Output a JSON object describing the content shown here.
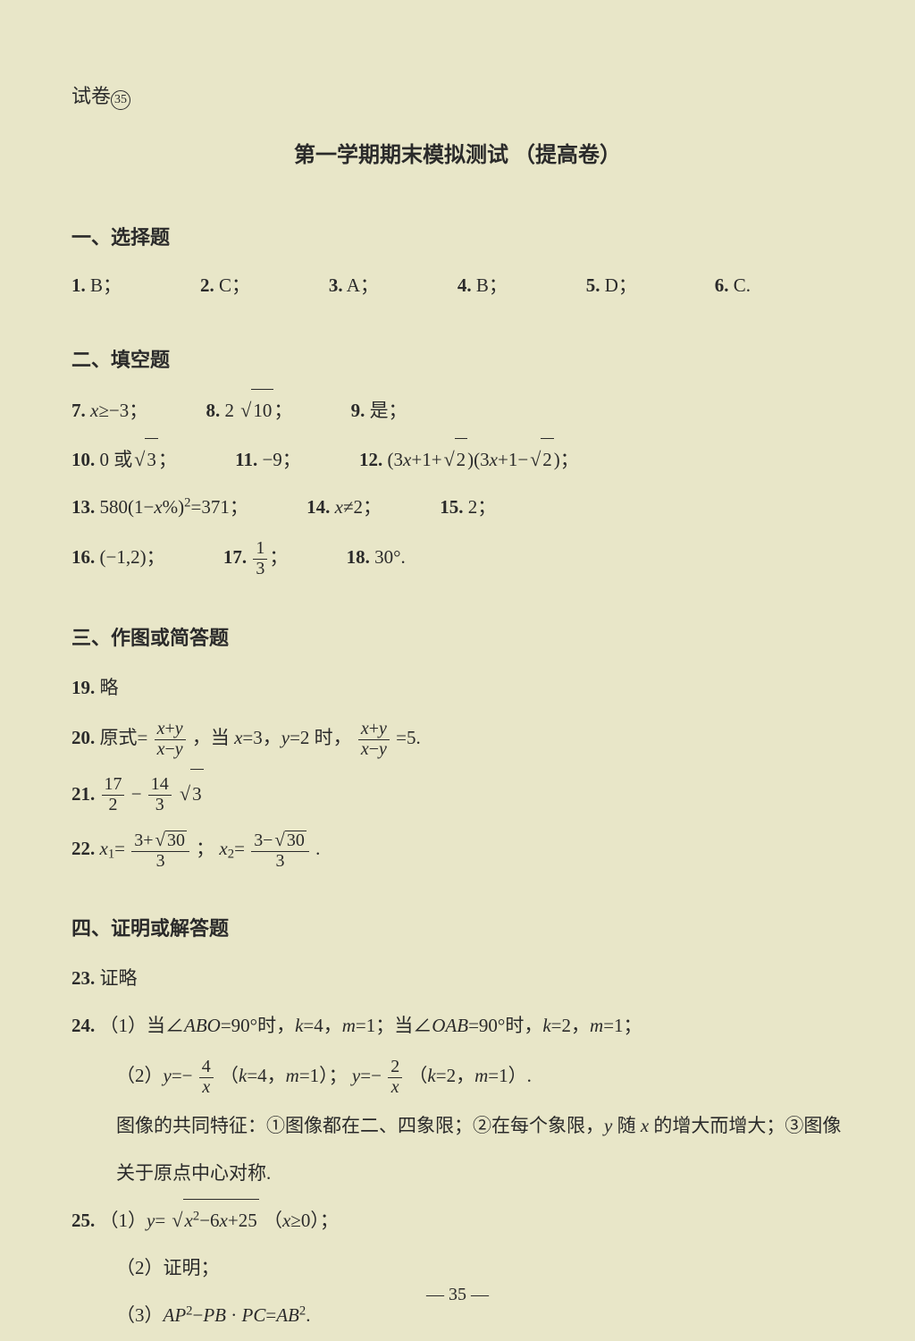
{
  "page_label_prefix": "试卷",
  "page_label_number": "35",
  "title": "第一学期期末模拟测试 （提高卷）",
  "background_color": "#e8e6c8",
  "text_color": "#2a2a2a",
  "sections": {
    "s1": {
      "heading": "一、选择题",
      "answers": [
        {
          "num": "1.",
          "val": "B；"
        },
        {
          "num": "2.",
          "val": "C；"
        },
        {
          "num": "3.",
          "val": "A；"
        },
        {
          "num": "4.",
          "val": "B；"
        },
        {
          "num": "5.",
          "val": "D；"
        },
        {
          "num": "6.",
          "val": "C."
        }
      ]
    },
    "s2": {
      "heading": "二、填空题",
      "q7": {
        "num": "7.",
        "text_a": "x",
        "text_b": "≥−3；"
      },
      "q8": {
        "num": "8.",
        "text_a": "2 ",
        "rad": "10",
        "text_b": "；"
      },
      "q9": {
        "num": "9.",
        "text": "是；"
      },
      "q10": {
        "num": "10.",
        "text_a": "0 或",
        "rad": "3",
        "text_b": "；"
      },
      "q11": {
        "num": "11.",
        "text": "−9；"
      },
      "q12": {
        "num": "12.",
        "text_a": "(3",
        "var_x": "x",
        "text_b": "+1+",
        "rad1": "2",
        "text_c": ")(3",
        "var_x2": "x",
        "text_d": "+1−",
        "rad2": "2",
        "text_e": ")；"
      },
      "q13": {
        "num": "13.",
        "text_a": "580(1−",
        "var_x": "x",
        "text_b": "%)",
        "sup": "2",
        "text_c": "=371；"
      },
      "q14": {
        "num": "14.",
        "var_x": "x",
        "text": "≠2；"
      },
      "q15": {
        "num": "15.",
        "text": "2；"
      },
      "q16": {
        "num": "16.",
        "text": "(−1,2)；"
      },
      "q17": {
        "num": "17.",
        "frac_num": "1",
        "frac_den": "3",
        "text": "；"
      },
      "q18": {
        "num": "18.",
        "text": "30°."
      }
    },
    "s3": {
      "heading": "三、作图或简答题",
      "q19": {
        "num": "19.",
        "text": "略"
      },
      "q20": {
        "num": "20.",
        "text_a": "原式=",
        "frac1_num_a": "x",
        "frac1_num_b": "+",
        "frac1_num_c": "y",
        "frac1_den_a": "x",
        "frac1_den_b": "−",
        "frac1_den_c": "y",
        "text_b": "，当 ",
        "var_x": "x",
        "text_c": "=3，",
        "var_y": "y",
        "text_d": "=2 时，",
        "frac2_num_a": "x",
        "frac2_num_b": "+",
        "frac2_num_c": "y",
        "frac2_den_a": "x",
        "frac2_den_b": "−",
        "frac2_den_c": "y",
        "text_e": "=5."
      },
      "q21": {
        "num": "21.",
        "f1_num": "17",
        "f1_den": "2",
        "mid": "−",
        "f2_num": "14",
        "f2_den": "3",
        "rad": "3"
      },
      "q22": {
        "num": "22.",
        "var_x1": "x",
        "sub1": "1",
        "eq1": "=",
        "f1_num_a": "3+",
        "f1_rad": "30",
        "f1_den": "3",
        "sep": "；   ",
        "var_x2": "x",
        "sub2": "2",
        "eq2": "=",
        "f2_num_a": "3−",
        "f2_rad": "30",
        "f2_den": "3",
        "end": "."
      }
    },
    "s4": {
      "heading": "四、证明或解答题",
      "q23": {
        "num": "23.",
        "text": "证略"
      },
      "q24": {
        "num": "24.",
        "line1_a": "（1）当∠",
        "line1_b": "ABO",
        "line1_c": "=90°时，",
        "line1_d": "k",
        "line1_e": "=4，",
        "line1_f": "m",
        "line1_g": "=1；当∠",
        "line1_h": "OAB",
        "line1_i": "=90°时，",
        "line1_j": "k",
        "line1_k": "=2，",
        "line1_l": "m",
        "line1_m": "=1；",
        "line2_a": "（2）",
        "line2_y": "y",
        "line2_b": "=−",
        "f1_num": "4",
        "f1_den": "x",
        "line2_c": "（",
        "line2_k": "k",
        "line2_d": "=4，",
        "line2_m": "m",
        "line2_e": "=1）；",
        "line2_y2": "y",
        "line2_f": "=−",
        "f2_num": "2",
        "f2_den": "x",
        "line2_g": "（",
        "line2_k2": "k",
        "line2_h": "=2，",
        "line2_m2": "m",
        "line2_i": "=1）.",
        "line3": "图像的共同特征：①图像都在二、四象限；②在每个象限，",
        "line3_y": "y",
        "line3_b": " 随 ",
        "line3_x": "x",
        "line3_c": " 的增大而增大；③图像",
        "line4": "关于原点中心对称."
      },
      "q25": {
        "num": "25.",
        "line1_a": "（1）",
        "line1_y": "y",
        "line1_b": "=",
        "rad_inner_a": "x",
        "rad_inner_sup": "2",
        "rad_inner_b": "−6",
        "rad_inner_c": "x",
        "rad_inner_d": "+25",
        "line1_c": "（",
        "line1_x": "x",
        "line1_d": "≥0）；",
        "line2": "（2）证明；",
        "line3_a": "（3）",
        "line3_ap": "AP",
        "line3_sup1": "2",
        "line3_b": "−",
        "line3_pb": "PB",
        "line3_c": " · ",
        "line3_pc": "PC",
        "line3_d": "=",
        "line3_ab": "AB",
        "line3_sup2": "2",
        "line3_e": "."
      }
    }
  },
  "page_number": "— 35 —"
}
